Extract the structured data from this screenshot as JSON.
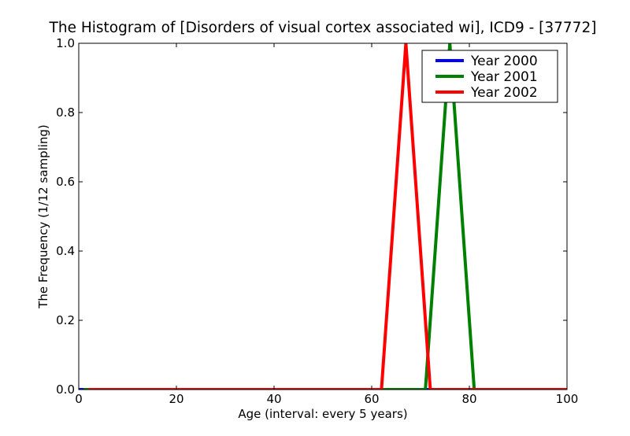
{
  "chart_data": {
    "type": "line",
    "title": "The Histogram of [Disorders of visual cortex associated wi], ICD9 - [37772]",
    "xlabel": "Age (interval: every 5 years)",
    "ylabel": "The Frequency (1/12 sampling)",
    "xlim": [
      0,
      100
    ],
    "ylim": [
      0,
      1.0
    ],
    "xticks": [
      "0",
      "20",
      "40",
      "60",
      "80",
      "100"
    ],
    "yticks": [
      "0.0",
      "0.2",
      "0.4",
      "0.6",
      "0.8",
      "1.0"
    ],
    "grid": false,
    "legend_position": "top-right",
    "series": [
      {
        "name": "Year 2000",
        "color": "#0000ff",
        "x": [
          0,
          5,
          10,
          15,
          20,
          25,
          30,
          35,
          40,
          45,
          50,
          55,
          60,
          65,
          70,
          75,
          80,
          85,
          90,
          95,
          100
        ],
        "y": [
          0,
          0,
          0,
          0,
          0,
          0,
          0,
          0,
          0,
          0,
          0,
          0,
          0,
          0,
          0,
          0,
          0,
          0,
          0,
          0,
          0
        ]
      },
      {
        "name": "Year 2001",
        "color": "#008000",
        "x": [
          1,
          6,
          11,
          16,
          21,
          26,
          31,
          36,
          41,
          46,
          51,
          56,
          61,
          66,
          71,
          76,
          81,
          86,
          91,
          96,
          101
        ],
        "y": [
          0,
          0,
          0,
          0,
          0,
          0,
          0,
          0,
          0,
          0,
          0,
          0,
          0,
          0,
          0,
          1,
          0,
          0,
          0,
          0,
          0
        ]
      },
      {
        "name": "Year 2002",
        "color": "#ff0000",
        "x": [
          2,
          7,
          12,
          17,
          22,
          27,
          32,
          37,
          42,
          47,
          52,
          57,
          62,
          67,
          72,
          77,
          82,
          87,
          92,
          97,
          102
        ],
        "y": [
          0,
          0,
          0,
          0,
          0,
          0,
          0,
          0,
          0,
          0,
          0,
          0,
          0,
          1,
          0,
          0,
          0,
          0,
          0,
          0,
          0
        ]
      }
    ]
  }
}
